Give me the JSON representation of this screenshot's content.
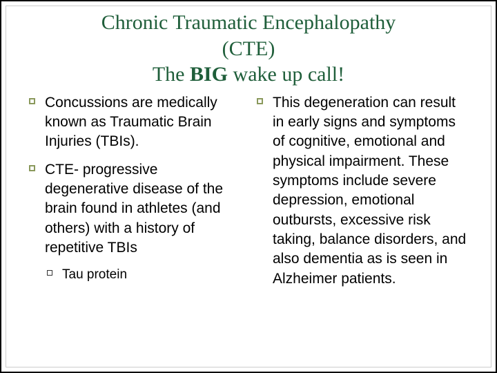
{
  "colors": {
    "title": "#1f5e3a",
    "bullet_border": "#8a995c",
    "body_text": "#000000"
  },
  "fontsize": {
    "title": 30,
    "body": 21,
    "sub": 19
  },
  "title": {
    "line1": "Chronic Traumatic Encephalopathy",
    "line2": "(CTE)",
    "line3_prefix": "The ",
    "line3_big": "BIG",
    "line3_suffix": " wake up call!"
  },
  "left_bullets": [
    "Concussions are medically known as Traumatic Brain Injuries (TBIs).",
    "CTE- progressive degenerative disease of the brain found in athletes (and others) with a history of repetitive TBIs"
  ],
  "left_sub": "Tau protein",
  "right_bullets": [
    "This degeneration can result in early signs and symptoms of cognitive, emotional and physical impairment. These symptoms include severe depression, emotional outbursts, excessive risk taking, balance disorders, and  also dementia as is seen in Alzheimer patients."
  ]
}
